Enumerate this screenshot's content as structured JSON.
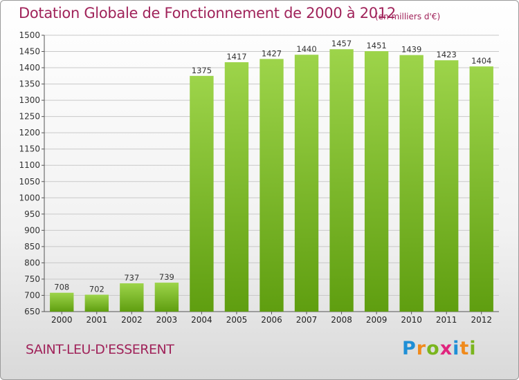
{
  "title": "Dotation Globale de Fonctionnement de 2000 à 2012",
  "subtitle": "(en milliers d'€)",
  "commune": "SAINT-LEU-D'ESSERENT",
  "logo": {
    "letters": [
      "P",
      "r",
      "o",
      "x",
      "i",
      "t",
      "i"
    ],
    "colors": [
      "#1f8fd6",
      "#f08a1c",
      "#7ab51d",
      "#e0257e",
      "#1f8fd6",
      "#f08a1c",
      "#7ab51d"
    ]
  },
  "colors": {
    "bar_top": "#9dd44a",
    "bar_bottom": "#5f9e10",
    "grid": "#c8c8c8",
    "title": "#a0235a"
  },
  "chart_data": {
    "type": "bar",
    "title": "Dotation Globale de Fonctionnement de 2000 à 2012",
    "subtitle": "(en milliers d'€)",
    "xlabel": "",
    "ylabel": "",
    "categories": [
      "2000",
      "2001",
      "2002",
      "2003",
      "2004",
      "2005",
      "2006",
      "2007",
      "2008",
      "2009",
      "2010",
      "2011",
      "2012"
    ],
    "values": [
      708,
      702,
      737,
      739,
      1375,
      1417,
      1427,
      1440,
      1457,
      1451,
      1439,
      1423,
      1404
    ],
    "ylim": [
      650,
      1500
    ],
    "yticks": [
      650,
      700,
      750,
      800,
      850,
      900,
      950,
      1000,
      1050,
      1100,
      1150,
      1200,
      1250,
      1300,
      1350,
      1400,
      1450,
      1500
    ],
    "grid": true,
    "legend": "none"
  }
}
